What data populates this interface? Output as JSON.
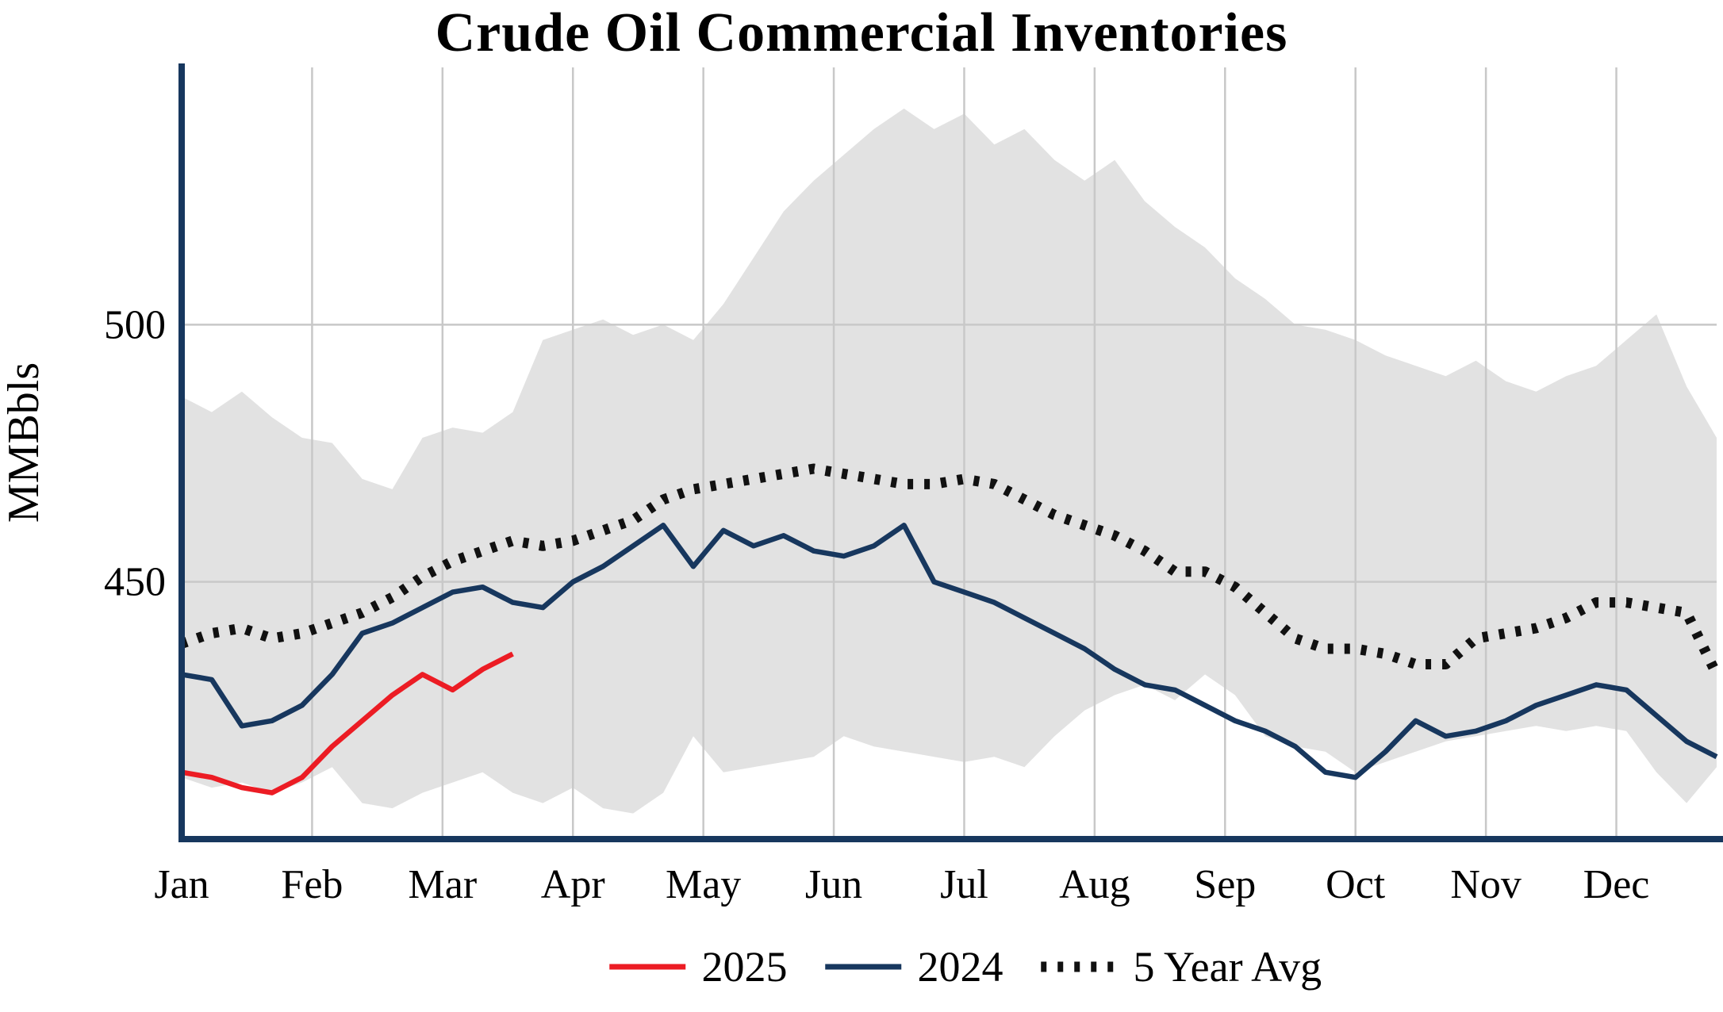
{
  "chart_data": {
    "type": "line",
    "title": "Crude Oil Commercial Inventories",
    "ylabel": "MMBbls",
    "x_unit": "weekly",
    "n_points": 52,
    "xticklabels": [
      "Jan",
      "Feb",
      "Mar",
      "Apr",
      "May",
      "Jun",
      "Jul",
      "Aug",
      "Sep",
      "Oct",
      "Nov",
      "Dec"
    ],
    "yticks": [
      450,
      500
    ],
    "ylim": [
      400,
      550
    ],
    "grid": true,
    "colors": {
      "axis": "#17375e",
      "grid": "#c8c8c8",
      "background": "#ffffff"
    },
    "band": {
      "name": "5 Year Range",
      "color": "#e2e2e2",
      "upper": [
        486,
        483,
        487,
        482,
        478,
        477,
        470,
        468,
        478,
        480,
        479,
        483,
        497,
        499,
        501,
        498,
        500,
        497,
        504,
        513,
        522,
        528,
        533,
        538,
        542,
        538,
        541,
        535,
        538,
        532,
        528,
        532,
        524,
        519,
        515,
        509,
        505,
        500,
        499,
        497,
        494,
        492,
        490,
        493,
        489,
        487,
        490,
        492,
        497,
        502,
        488,
        478
      ],
      "lower": [
        412,
        410,
        411,
        409,
        411,
        414,
        407,
        406,
        409,
        411,
        413,
        409,
        407,
        410,
        406,
        405,
        409,
        420,
        413,
        414,
        415,
        416,
        420,
        418,
        417,
        416,
        415,
        416,
        414,
        420,
        425,
        428,
        430,
        427,
        432,
        428,
        420,
        418,
        417,
        413,
        415,
        417,
        419,
        420,
        421,
        422,
        421,
        422,
        421,
        413,
        407,
        414
      ]
    },
    "series": [
      {
        "name": "2025",
        "color": "#ec1c24",
        "style": "solid",
        "start_week": 0,
        "values": [
          413,
          412,
          410,
          409,
          412,
          418,
          423,
          428,
          432,
          429,
          433,
          436
        ]
      },
      {
        "name": "2024",
        "color": "#17375e",
        "style": "solid",
        "start_week": 0,
        "values": [
          432,
          431,
          422,
          423,
          426,
          432,
          440,
          442,
          445,
          448,
          449,
          446,
          445,
          450,
          453,
          457,
          461,
          453,
          460,
          457,
          459,
          456,
          455,
          457,
          461,
          450,
          448,
          446,
          443,
          440,
          437,
          433,
          430,
          429,
          426,
          423,
          421,
          418,
          413,
          412,
          417,
          423,
          420,
          421,
          423,
          426,
          428,
          430,
          429,
          424,
          419,
          416
        ]
      },
      {
        "name": "5 Year Avg",
        "color": "#111111",
        "style": "dotted",
        "start_week": 0,
        "values": [
          438,
          440,
          441,
          439,
          440,
          442,
          444,
          447,
          451,
          454,
          456,
          458,
          457,
          458,
          460,
          462,
          466,
          468,
          469,
          470,
          471,
          472,
          471,
          470,
          469,
          469,
          470,
          469,
          466,
          463,
          461,
          459,
          456,
          452,
          452,
          449,
          444,
          439,
          437,
          437,
          436,
          434,
          434,
          439,
          440,
          441,
          443,
          446,
          446,
          445,
          444,
          432
        ]
      }
    ],
    "legend_position": "bottom"
  }
}
